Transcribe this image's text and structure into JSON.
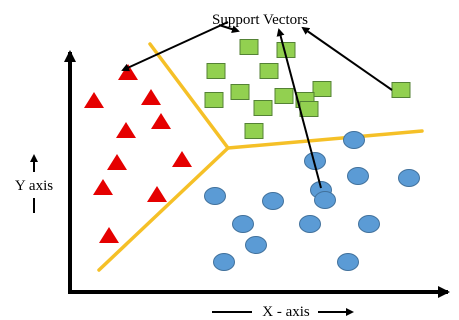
{
  "title": "Support Vectors",
  "x_axis_label": "X - axis",
  "y_axis_label": "Y axis",
  "colors": {
    "triangle": "#e50000",
    "square": "#92d050",
    "square_edge": "#548235",
    "circle": "#5b9bd5",
    "circle_edge": "#41719c",
    "boundary": "#f5c027",
    "axis": "#000000"
  },
  "classes": [
    {
      "name": "triangles",
      "count": 11
    },
    {
      "name": "squares",
      "count": 14
    },
    {
      "name": "circles",
      "count": 15
    }
  ]
}
